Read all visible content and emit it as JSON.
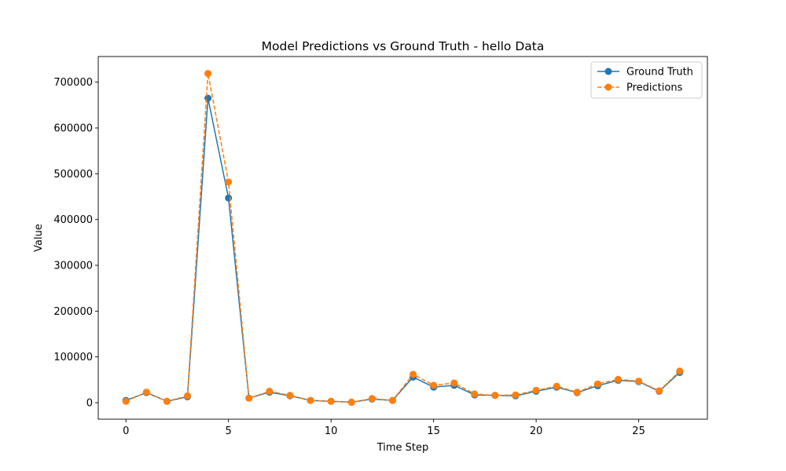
{
  "chart_data": {
    "type": "line",
    "title": "Model Predictions vs Ground Truth - hello Data",
    "xlabel": "Time Step",
    "ylabel": "Value",
    "xlim": [
      -1.35,
      28.35
    ],
    "ylim": [
      -36000,
      756000
    ],
    "xticks": [
      0,
      5,
      10,
      15,
      20,
      25
    ],
    "yticks": [
      0,
      100000,
      200000,
      300000,
      400000,
      500000,
      600000,
      700000
    ],
    "grid": false,
    "legend_position": "top-right",
    "x": [
      0,
      1,
      2,
      3,
      4,
      5,
      6,
      7,
      8,
      9,
      10,
      11,
      12,
      13,
      14,
      15,
      16,
      17,
      18,
      19,
      20,
      21,
      22,
      23,
      24,
      25,
      26,
      27
    ],
    "series": [
      {
        "name": "Ground Truth",
        "color": "#1f77b4",
        "linestyle": "solid",
        "marker": "circle",
        "values": [
          5000,
          22000,
          3000,
          13000,
          665000,
          447000,
          10000,
          23000,
          15000,
          5000,
          3000,
          1000,
          8000,
          5000,
          56000,
          34000,
          38000,
          17000,
          16000,
          15000,
          25000,
          34000,
          22000,
          37000,
          49000,
          46000,
          25000,
          66000
        ]
      },
      {
        "name": "Predictions",
        "color": "#ff7f0e",
        "linestyle": "dashed",
        "marker": "circle",
        "values": [
          3000,
          23000,
          3000,
          15000,
          719000,
          482000,
          10000,
          25000,
          16000,
          5000,
          3000,
          1000,
          9000,
          5000,
          62000,
          38000,
          43000,
          19000,
          16000,
          17000,
          27000,
          36000,
          23000,
          41000,
          51000,
          47000,
          26000,
          69000
        ]
      }
    ]
  }
}
